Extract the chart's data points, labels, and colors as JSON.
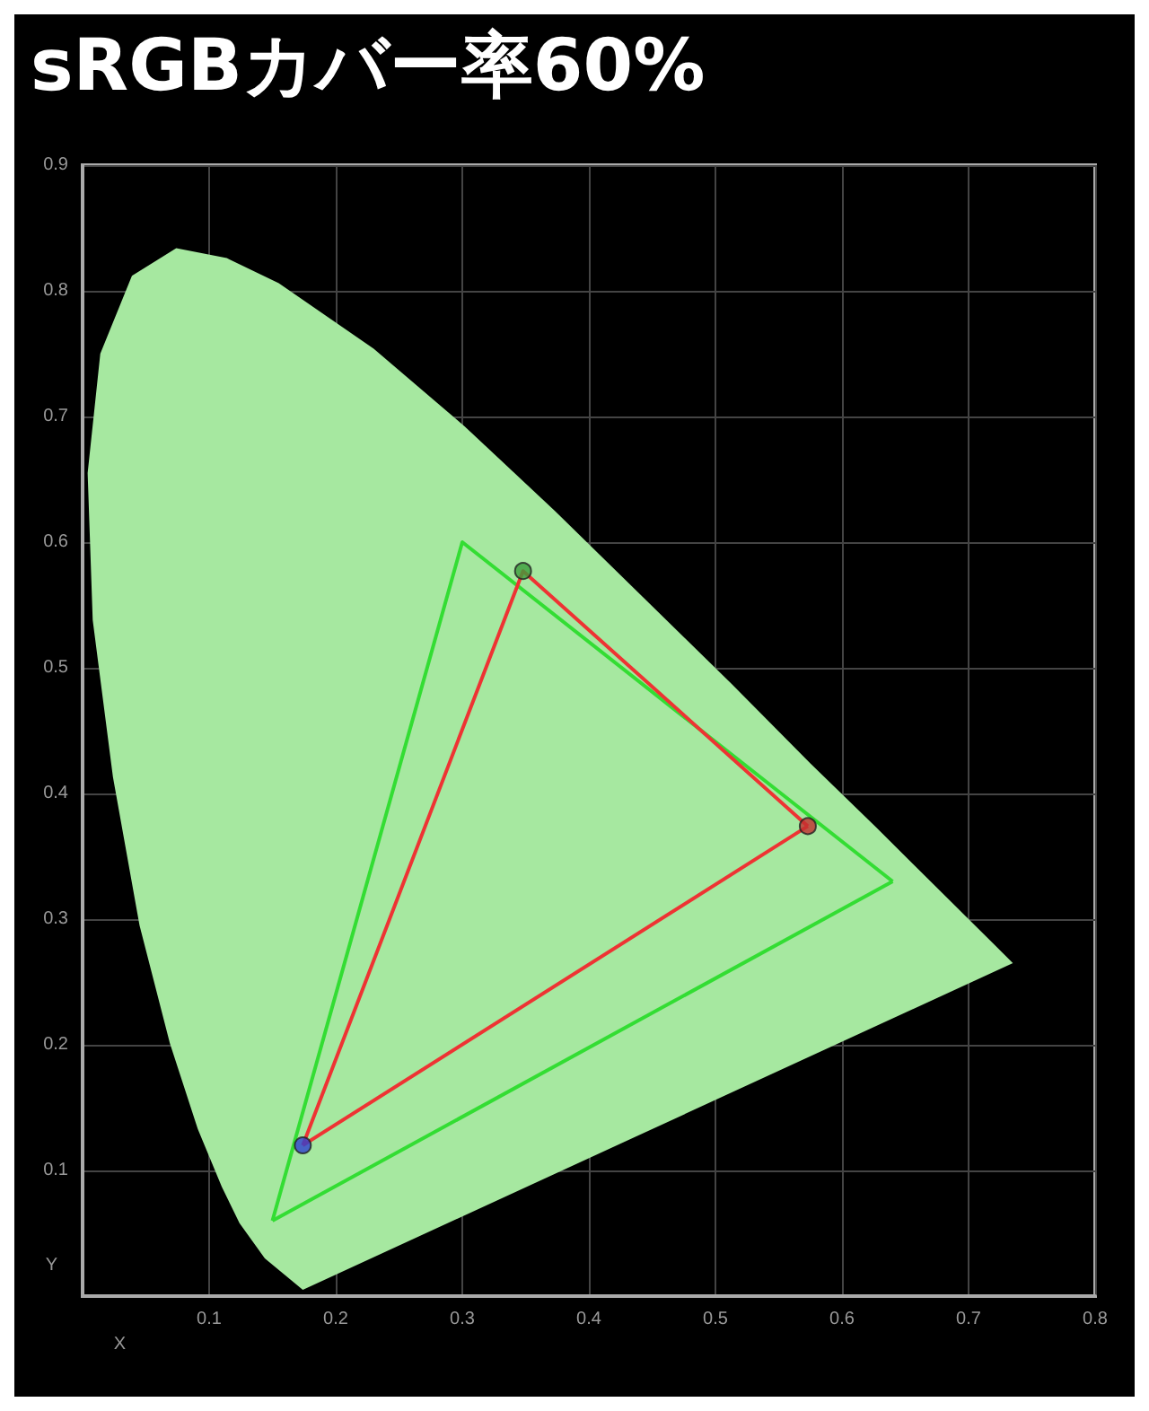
{
  "chart_data": {
    "type": "line",
    "title": "sRGBカバー率60%",
    "xlabel": "X",
    "ylabel": "Y",
    "xlim": [
      0,
      0.8
    ],
    "ylim": [
      0,
      0.9
    ],
    "xticks": [
      0.1,
      0.2,
      0.3,
      0.4,
      0.5,
      0.6,
      0.7,
      0.8
    ],
    "yticks": [
      0.1,
      0.2,
      0.3,
      0.4,
      0.5,
      0.6,
      0.7,
      0.8,
      0.9
    ],
    "grid": true,
    "series": [
      {
        "type": "area",
        "color": "#a6e8a0",
        "x": [
          0.174,
          0.144,
          0.124,
          0.11,
          0.091,
          0.069,
          0.045,
          0.024,
          0.008,
          0.004,
          0.014,
          0.039,
          0.074,
          0.114,
          0.155,
          0.23,
          0.302,
          0.373,
          0.444,
          0.513,
          0.575,
          0.627,
          0.692,
          0.719,
          0.735
        ],
        "values": [
          0.005,
          0.03,
          0.058,
          0.087,
          0.133,
          0.201,
          0.295,
          0.413,
          0.538,
          0.655,
          0.75,
          0.812,
          0.834,
          0.826,
          0.806,
          0.754,
          0.692,
          0.625,
          0.555,
          0.487,
          0.424,
          0.373,
          0.308,
          0.281,
          0.265
        ]
      },
      {
        "color": "#33dd33",
        "marker": "none",
        "x": [
          0.15,
          0.3,
          0.64
        ],
        "values": [
          0.06,
          0.6,
          0.33
        ]
      },
      {
        "color": "#33dd33",
        "marker": "none",
        "x": [
          0.15,
          0.64
        ],
        "values": [
          0.06,
          0.33
        ]
      },
      {
        "color": "#ee3333",
        "marker": "none",
        "x": [
          0.174,
          0.348,
          0.573
        ],
        "values": [
          0.12,
          0.577,
          0.374
        ]
      },
      {
        "color": "#ee3333",
        "marker": "none",
        "x": [
          0.174,
          0.573
        ],
        "values": [
          0.12,
          0.374
        ]
      },
      {
        "type": "scatter",
        "marker": "circle",
        "colors": [
          "#c03030",
          "#3c9c3c",
          "#3040d0"
        ],
        "x": [
          0.573,
          0.348,
          0.174
        ],
        "values": [
          0.374,
          0.577,
          0.12
        ]
      }
    ]
  }
}
